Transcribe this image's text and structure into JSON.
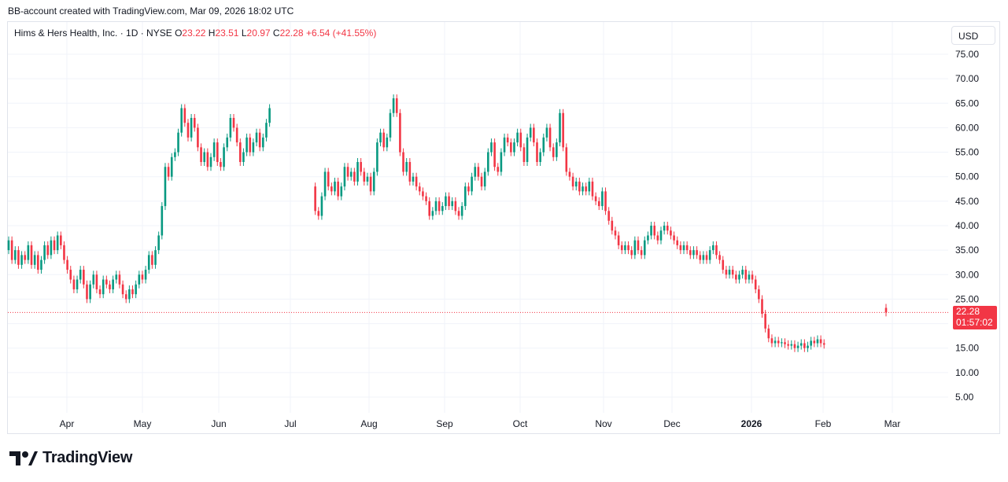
{
  "header": {
    "caption": "BB-account created with TradingView.com, Mar 09, 2026 18:02 UTC"
  },
  "legend": {
    "symbol": "Hims & Hers Health, Inc. · 1D · NYSE",
    "o_label": "O",
    "o_value": "23.22",
    "h_label": "H",
    "h_value": "23.51",
    "l_label": "L",
    "l_value": "20.97",
    "c_label": "C",
    "c_value": "22.28",
    "change": "+6.54 (+41.55%)"
  },
  "currency": "USD",
  "price_tag": {
    "price": "22.28",
    "countdown": "01:57:02"
  },
  "footer": {
    "brand": "TradingView"
  },
  "colors": {
    "up": "#089981",
    "down": "#f23645",
    "grid": "#f0f3fa",
    "price_line": "#f23645"
  },
  "chart_data": {
    "type": "candlestick",
    "y_ticks": [
      "5.00",
      "10.00",
      "15.00",
      "20.00",
      "25.00",
      "30.00",
      "35.00",
      "40.00",
      "45.00",
      "50.00",
      "55.00",
      "60.00",
      "65.00",
      "70.00",
      "75.00"
    ],
    "x_ticks": [
      {
        "label": "Apr"
      },
      {
        "label": "May"
      },
      {
        "label": "Jun"
      },
      {
        "label": "Jul"
      },
      {
        "label": "Aug"
      },
      {
        "label": "Sep"
      },
      {
        "label": "Oct"
      },
      {
        "label": "Nov"
      },
      {
        "label": "Dec"
      },
      {
        "label": "2026",
        "bold": true
      },
      {
        "label": "Feb"
      },
      {
        "label": "Mar"
      }
    ],
    "ylim": [
      5,
      75
    ],
    "last_price": 22.28,
    "grid": true,
    "segments": [
      {
        "start_index": 0,
        "points": [
          [
            35,
            37
          ],
          [
            37,
            33
          ],
          [
            33,
            35
          ],
          [
            35,
            32
          ],
          [
            32,
            34
          ],
          [
            34,
            33
          ],
          [
            33,
            36
          ],
          [
            36,
            32
          ],
          [
            32,
            34
          ],
          [
            34,
            31
          ],
          [
            31,
            33
          ],
          [
            33,
            36
          ],
          [
            36,
            34
          ],
          [
            34,
            37
          ],
          [
            37,
            35
          ],
          [
            35,
            38
          ],
          [
            38,
            36
          ],
          [
            36,
            33
          ],
          [
            33,
            31
          ],
          [
            31,
            29
          ],
          [
            29,
            27
          ],
          [
            27,
            29
          ],
          [
            29,
            31
          ],
          [
            31,
            28
          ],
          [
            28,
            25
          ],
          [
            25,
            28
          ],
          [
            28,
            30
          ],
          [
            30,
            27
          ],
          [
            27,
            26
          ],
          [
            26,
            29
          ],
          [
            29,
            28
          ],
          [
            28,
            27
          ],
          [
            27,
            29
          ],
          [
            29,
            30
          ],
          [
            30,
            28
          ],
          [
            28,
            26
          ],
          [
            26,
            25
          ],
          [
            25,
            27
          ],
          [
            27,
            26
          ],
          [
            26,
            28
          ],
          [
            28,
            30
          ],
          [
            30,
            29
          ],
          [
            29,
            31
          ],
          [
            31,
            34
          ],
          [
            34,
            32
          ],
          [
            32,
            35
          ],
          [
            35,
            38
          ],
          [
            38,
            44
          ],
          [
            44,
            52
          ],
          [
            52,
            50
          ],
          [
            50,
            54
          ],
          [
            54,
            55
          ],
          [
            55,
            59
          ],
          [
            59,
            64
          ],
          [
            64,
            61
          ],
          [
            61,
            58
          ],
          [
            58,
            62
          ],
          [
            62,
            60
          ],
          [
            60,
            56
          ],
          [
            56,
            53
          ],
          [
            53,
            55
          ],
          [
            55,
            52
          ],
          [
            52,
            54
          ],
          [
            54,
            57
          ],
          [
            57,
            53
          ],
          [
            53,
            52
          ],
          [
            52,
            56
          ],
          [
            56,
            58
          ],
          [
            58,
            62
          ],
          [
            62,
            60
          ],
          [
            60,
            57
          ],
          [
            57,
            53
          ],
          [
            53,
            55
          ],
          [
            55,
            58
          ],
          [
            58,
            55
          ],
          [
            55,
            57
          ],
          [
            57,
            59
          ],
          [
            59,
            56
          ],
          [
            56,
            58
          ],
          [
            58,
            61
          ],
          [
            61,
            64
          ]
        ]
      },
      {
        "start_index": 94,
        "points": [
          [
            48,
            43
          ],
          [
            43,
            42
          ],
          [
            42,
            46
          ],
          [
            46,
            51
          ],
          [
            51,
            48
          ],
          [
            48,
            47
          ],
          [
            47,
            49
          ],
          [
            49,
            46
          ],
          [
            46,
            48
          ],
          [
            48,
            52
          ],
          [
            52,
            50
          ],
          [
            50,
            51
          ],
          [
            51,
            49
          ],
          [
            49,
            53
          ],
          [
            53,
            51
          ],
          [
            51,
            49
          ],
          [
            49,
            50
          ],
          [
            50,
            47
          ],
          [
            47,
            51
          ],
          [
            51,
            57
          ],
          [
            57,
            59
          ],
          [
            59,
            56
          ],
          [
            56,
            58
          ],
          [
            58,
            63
          ],
          [
            63,
            66
          ],
          [
            66,
            63
          ],
          [
            63,
            55
          ],
          [
            55,
            51
          ],
          [
            51,
            53
          ],
          [
            53,
            49
          ],
          [
            49,
            50
          ],
          [
            50,
            48
          ],
          [
            48,
            47
          ],
          [
            47,
            46
          ],
          [
            46,
            45
          ],
          [
            45,
            42
          ],
          [
            42,
            43
          ],
          [
            43,
            45
          ],
          [
            45,
            43
          ],
          [
            43,
            44
          ],
          [
            44,
            46
          ],
          [
            46,
            44
          ],
          [
            44,
            45
          ],
          [
            45,
            43
          ],
          [
            43,
            42
          ],
          [
            42,
            44
          ],
          [
            44,
            48
          ],
          [
            48,
            47
          ],
          [
            47,
            50
          ],
          [
            50,
            52
          ],
          [
            52,
            50
          ],
          [
            50,
            48
          ],
          [
            48,
            51
          ],
          [
            51,
            55
          ],
          [
            55,
            57
          ],
          [
            57,
            52
          ],
          [
            52,
            51
          ],
          [
            51,
            55
          ],
          [
            55,
            58
          ],
          [
            58,
            57
          ],
          [
            57,
            55
          ],
          [
            55,
            57
          ],
          [
            57,
            59
          ],
          [
            59,
            56
          ],
          [
            56,
            53
          ],
          [
            53,
            58
          ],
          [
            58,
            60
          ],
          [
            60,
            57
          ],
          [
            57,
            53
          ],
          [
            53,
            55
          ],
          [
            55,
            58
          ],
          [
            58,
            60
          ],
          [
            60,
            56
          ],
          [
            56,
            54
          ],
          [
            54,
            57
          ],
          [
            57,
            63
          ],
          [
            63,
            56
          ],
          [
            56,
            51
          ],
          [
            51,
            50
          ],
          [
            50,
            48
          ],
          [
            48,
            49
          ],
          [
            49,
            47
          ],
          [
            47,
            48
          ],
          [
            48,
            47
          ],
          [
            47,
            49
          ],
          [
            49,
            46
          ],
          [
            46,
            45
          ],
          [
            45,
            44
          ],
          [
            44,
            47
          ],
          [
            47,
            43
          ],
          [
            43,
            41
          ],
          [
            41,
            39
          ],
          [
            39,
            38
          ],
          [
            38,
            36
          ],
          [
            36,
            35
          ],
          [
            35,
            36
          ],
          [
            36,
            35
          ],
          [
            35,
            34
          ],
          [
            34,
            37
          ],
          [
            37,
            35
          ],
          [
            35,
            34
          ],
          [
            34,
            37
          ],
          [
            37,
            38
          ],
          [
            38,
            40
          ],
          [
            40,
            38
          ],
          [
            38,
            37
          ],
          [
            37,
            39
          ],
          [
            39,
            40
          ],
          [
            40,
            39
          ],
          [
            39,
            38
          ],
          [
            38,
            37
          ],
          [
            37,
            36
          ],
          [
            36,
            35
          ],
          [
            35,
            36
          ],
          [
            36,
            35
          ],
          [
            35,
            34
          ],
          [
            34,
            35
          ],
          [
            35,
            34
          ],
          [
            34,
            33
          ],
          [
            33,
            34
          ],
          [
            34,
            33
          ],
          [
            33,
            35
          ],
          [
            35,
            36
          ],
          [
            36,
            34
          ],
          [
            34,
            33
          ],
          [
            33,
            31
          ],
          [
            31,
            30
          ],
          [
            30,
            31
          ],
          [
            31,
            30
          ],
          [
            30,
            29
          ],
          [
            29,
            30
          ],
          [
            30,
            31
          ],
          [
            31,
            29
          ],
          [
            29,
            30
          ],
          [
            30,
            29
          ],
          [
            29,
            27
          ],
          [
            27,
            25
          ],
          [
            25,
            22
          ],
          [
            22,
            19
          ],
          [
            19,
            17
          ],
          [
            17,
            16
          ],
          [
            16,
            16.5
          ],
          [
            16.5,
            16
          ],
          [
            16,
            16.2
          ],
          [
            16.2,
            15.8
          ],
          [
            15.8,
            15.5
          ],
          [
            15.5,
            15.8
          ],
          [
            15.8,
            15
          ],
          [
            15,
            15.5
          ],
          [
            15.5,
            16
          ],
          [
            16,
            15
          ],
          [
            15,
            15.5
          ],
          [
            15.5,
            16.5
          ],
          [
            16.5,
            16
          ],
          [
            16,
            16.8
          ],
          [
            16.8,
            16
          ],
          [
            16,
            15.7
          ]
        ]
      },
      {
        "start_index": 269,
        "points": [
          [
            23.22,
            22.28
          ]
        ]
      }
    ]
  }
}
